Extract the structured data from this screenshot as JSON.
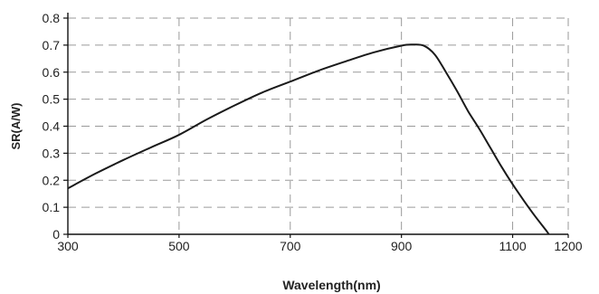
{
  "chart_data": {
    "type": "line",
    "title": "",
    "xlabel": "Wavelength(nm)",
    "ylabel": "SR(A/W)",
    "xlim": [
      300,
      1200
    ],
    "ylim": [
      0,
      0.8
    ],
    "x_ticks": [
      "300",
      "500",
      "700",
      "900",
      "1100",
      "1200"
    ],
    "x_tick_values": [
      300,
      500,
      700,
      900,
      1100,
      1200
    ],
    "y_ticks": [
      "0",
      "0.1",
      "0.2",
      "0.3",
      "0.4",
      "0.5",
      "0.6",
      "0.7",
      "0.8"
    ],
    "y_tick_values": [
      0,
      0.1,
      0.2,
      0.3,
      0.4,
      0.5,
      0.6,
      0.7,
      0.8
    ],
    "grid": true,
    "line_color": "#1a1a1a",
    "grid_color": "#9a9a9a",
    "series": [
      {
        "x": [
          300,
          350,
          400,
          450,
          500,
          550,
          600,
          650,
          700,
          750,
          800,
          850,
          900,
          920,
          940,
          960,
          980,
          1000,
          1020,
          1040,
          1060,
          1080,
          1100,
          1120,
          1140,
          1160,
          1165
        ],
        "y": [
          0.17,
          0.225,
          0.275,
          0.322,
          0.368,
          0.425,
          0.477,
          0.525,
          0.565,
          0.605,
          0.64,
          0.673,
          0.698,
          0.702,
          0.698,
          0.665,
          0.6,
          0.53,
          0.455,
          0.39,
          0.32,
          0.25,
          0.185,
          0.125,
          0.068,
          0.015,
          0.0
        ]
      }
    ]
  }
}
